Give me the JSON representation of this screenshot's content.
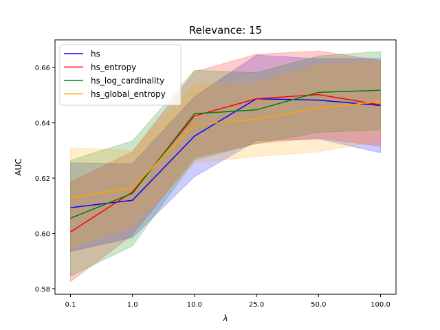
{
  "chart_data": {
    "type": "line",
    "title": "Relevance: 15",
    "xlabel": "λ",
    "ylabel": "AUC",
    "categories": [
      "0.1",
      "1.0",
      "10.0",
      "25.0",
      "50.0",
      "100.0"
    ],
    "ylim": [
      0.578,
      0.67
    ],
    "yticks": [
      0.58,
      0.6,
      0.62,
      0.64,
      0.66
    ],
    "ytick_labels": [
      "0.58",
      "0.60",
      "0.62",
      "0.64",
      "0.66"
    ],
    "grid": false,
    "legend_position": "upper-left",
    "series": [
      {
        "name": "hs",
        "color": "#0000ff",
        "values": [
          0.6093,
          0.612,
          0.6352,
          0.6487,
          0.6482,
          0.6463
        ],
        "lower": [
          0.5935,
          0.5985,
          0.6205,
          0.6335,
          0.6342,
          0.6292
        ],
        "upper": [
          0.6255,
          0.6252,
          0.6495,
          0.6645,
          0.6632,
          0.6632
        ]
      },
      {
        "name": "hs_entropy",
        "color": "#ff0000",
        "values": [
          0.6005,
          0.615,
          0.6425,
          0.6487,
          0.6502,
          0.6465
        ],
        "lower": [
          0.5825,
          0.5995,
          0.6275,
          0.6325,
          0.6345,
          0.6315
        ],
        "upper": [
          0.6185,
          0.6295,
          0.6585,
          0.6648,
          0.666,
          0.6625
        ]
      },
      {
        "name": "hs_log_cardinality",
        "color": "#008000",
        "values": [
          0.6055,
          0.6145,
          0.6433,
          0.6447,
          0.651,
          0.6518
        ],
        "lower": [
          0.5845,
          0.5955,
          0.6265,
          0.6325,
          0.6365,
          0.6375
        ],
        "upper": [
          0.6265,
          0.6335,
          0.659,
          0.6582,
          0.6642,
          0.6658
        ]
      },
      {
        "name": "hs_global_entropy",
        "color": "#ffa500",
        "values": [
          0.6128,
          0.6165,
          0.6393,
          0.6413,
          0.6453,
          0.6478
        ],
        "lower": [
          0.5945,
          0.6025,
          0.6255,
          0.6278,
          0.6295,
          0.6335
        ],
        "upper": [
          0.631,
          0.63,
          0.654,
          0.6545,
          0.6612,
          0.6622
        ]
      }
    ]
  }
}
